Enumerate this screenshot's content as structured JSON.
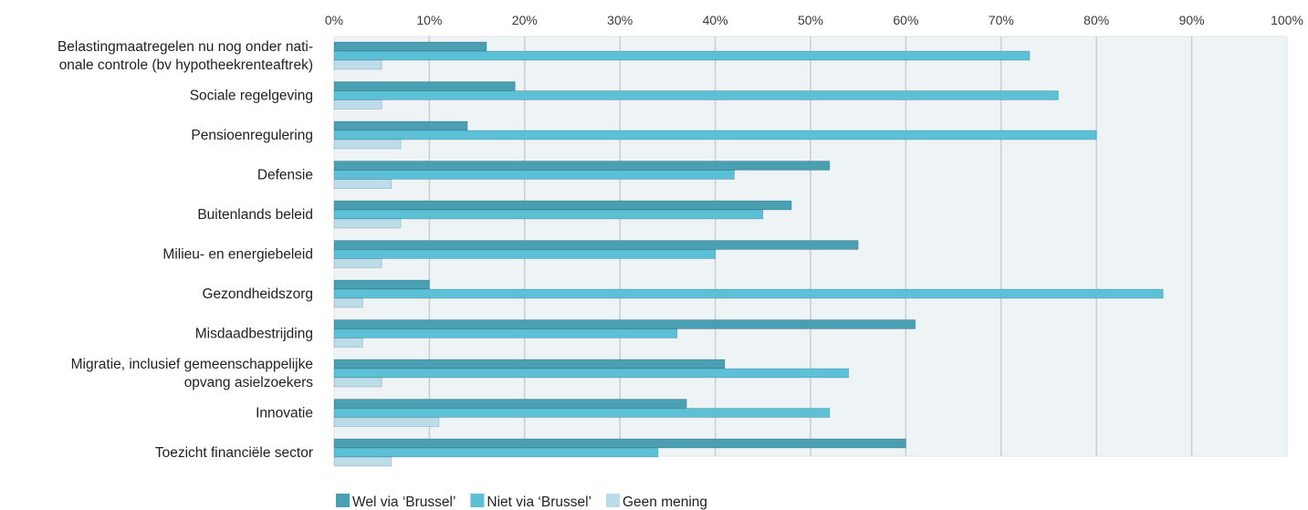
{
  "chart_data": {
    "type": "bar",
    "orientation": "horizontal",
    "title": "",
    "xlabel": "",
    "ylabel": "",
    "xlim": [
      0,
      100
    ],
    "x_ticks": [
      "0%",
      "10%",
      "20%",
      "30%",
      "40%",
      "50%",
      "60%",
      "70%",
      "80%",
      "90%",
      "100%"
    ],
    "grid": true,
    "legend_position": "bottom",
    "categories": [
      [
        "Belastingmaatregelen nu nog onder nati-",
        "onale controle (bv hypotheekrenteaftrek)"
      ],
      [
        "Sociale regelgeving"
      ],
      [
        "Pensioenregulering"
      ],
      [
        "Defensie"
      ],
      [
        "Buitenlands beleid"
      ],
      [
        "Milieu- en energiebeleid"
      ],
      [
        "Gezondheidszorg"
      ],
      [
        "Misdaadbestrijding"
      ],
      [
        "Migratie, inclusief gemeenschappelijke",
        "opvang asielzoekers"
      ],
      [
        "Innovatie"
      ],
      [
        "Toezicht financiële sector"
      ]
    ],
    "series": [
      {
        "name": "Wel via ‘Brussel’",
        "color": "#4a9fb3",
        "values": [
          16,
          19,
          14,
          52,
          48,
          55,
          10,
          61,
          41,
          37,
          60
        ]
      },
      {
        "name": "Niet via ‘Brussel’",
        "color": "#5cc0d6",
        "values": [
          73,
          76,
          80,
          42,
          45,
          40,
          87,
          36,
          54,
          52,
          34
        ]
      },
      {
        "name": "Geen mening",
        "color": "#bcdcea",
        "values": [
          5,
          5,
          7,
          6,
          7,
          5,
          3,
          3,
          5,
          11,
          6
        ]
      }
    ]
  }
}
